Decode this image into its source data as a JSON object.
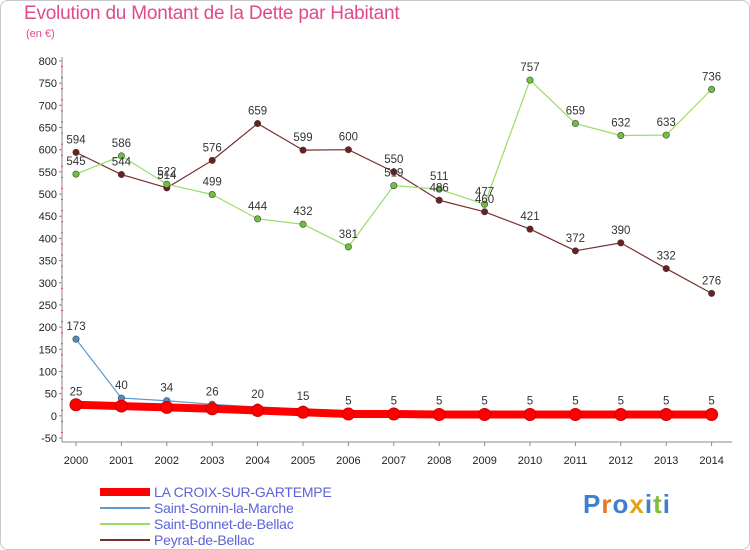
{
  "title": "Evolution du Montant de la Dette par Habitant",
  "unit_label": "(en €)",
  "logo_text": "Proxiti",
  "chart_data": {
    "type": "line",
    "title": "Evolution du Montant de la Dette par Habitant",
    "subtitle": "(en €)",
    "xlabel": "",
    "ylabel": "",
    "x": [
      "2000",
      "2001",
      "2002",
      "2003",
      "2004",
      "2005",
      "2006",
      "2007",
      "2008",
      "2009",
      "2010",
      "2011",
      "2012",
      "2013",
      "2014"
    ],
    "ylim": [
      -50,
      800
    ],
    "yticks": [
      -50,
      0,
      50,
      100,
      150,
      200,
      250,
      300,
      350,
      400,
      450,
      500,
      550,
      600,
      650,
      700,
      750,
      800
    ],
    "grid": false,
    "legend_position": "bottom-left",
    "series": [
      {
        "name": "LA CROIX-SUR-GARTEMPE",
        "color": "#ff0000",
        "marker_color": "#ff0000",
        "width": 8,
        "values": [
          25,
          22,
          19,
          16,
          12,
          8,
          4,
          4,
          3,
          3,
          3,
          3,
          3,
          3,
          3
        ]
      },
      {
        "name": "Saint-Sornin-la-Marche",
        "color": "#5b9bd5",
        "marker_color": "#4a90c8",
        "width": 1.2,
        "values": [
          173,
          40,
          34,
          26,
          20,
          15,
          5,
          5,
          5,
          5,
          5,
          5,
          5,
          5,
          5
        ]
      },
      {
        "name": "Saint-Bonnet-de-Bellac",
        "color": "#99dd66",
        "marker_color": "#6cc23a",
        "width": 1.2,
        "values": [
          545,
          586,
          522,
          499,
          444,
          432,
          381,
          519,
          511,
          477,
          757,
          659,
          632,
          633,
          736
        ]
      },
      {
        "name": "Peyrat-de-Bellac",
        "color": "#7a2e2e",
        "marker_color": "#6b1f1f",
        "width": 1.2,
        "values": [
          594,
          544,
          514,
          576,
          659,
          599,
          600,
          550,
          486,
          460,
          421,
          372,
          390,
          332,
          276
        ]
      }
    ],
    "data_labels": {
      "LA CROIX-SUR-GARTEMPE": [
        "25",
        "",
        "",
        "",
        "",
        "",
        "",
        "",
        "",
        "",
        "",
        "",
        "",
        "",
        ""
      ],
      "Saint-Sornin-la-Marche": [
        "173",
        "40",
        "34",
        "26",
        "20",
        "15",
        "5",
        "5",
        "5",
        "5",
        "5",
        "5",
        "5",
        "5",
        "5"
      ],
      "Saint-Bonnet-de-Bellac": [
        "545",
        "586",
        "522",
        "499",
        "444",
        "432",
        "381",
        "519",
        "511",
        "477",
        "757",
        "659",
        "632",
        "633",
        "736"
      ],
      "Peyrat-de-Bellac": [
        "594",
        "544",
        "514",
        "576",
        "659",
        "599",
        "600",
        "550",
        "486",
        "460",
        "421",
        "372",
        "390",
        "332",
        "276"
      ]
    }
  }
}
